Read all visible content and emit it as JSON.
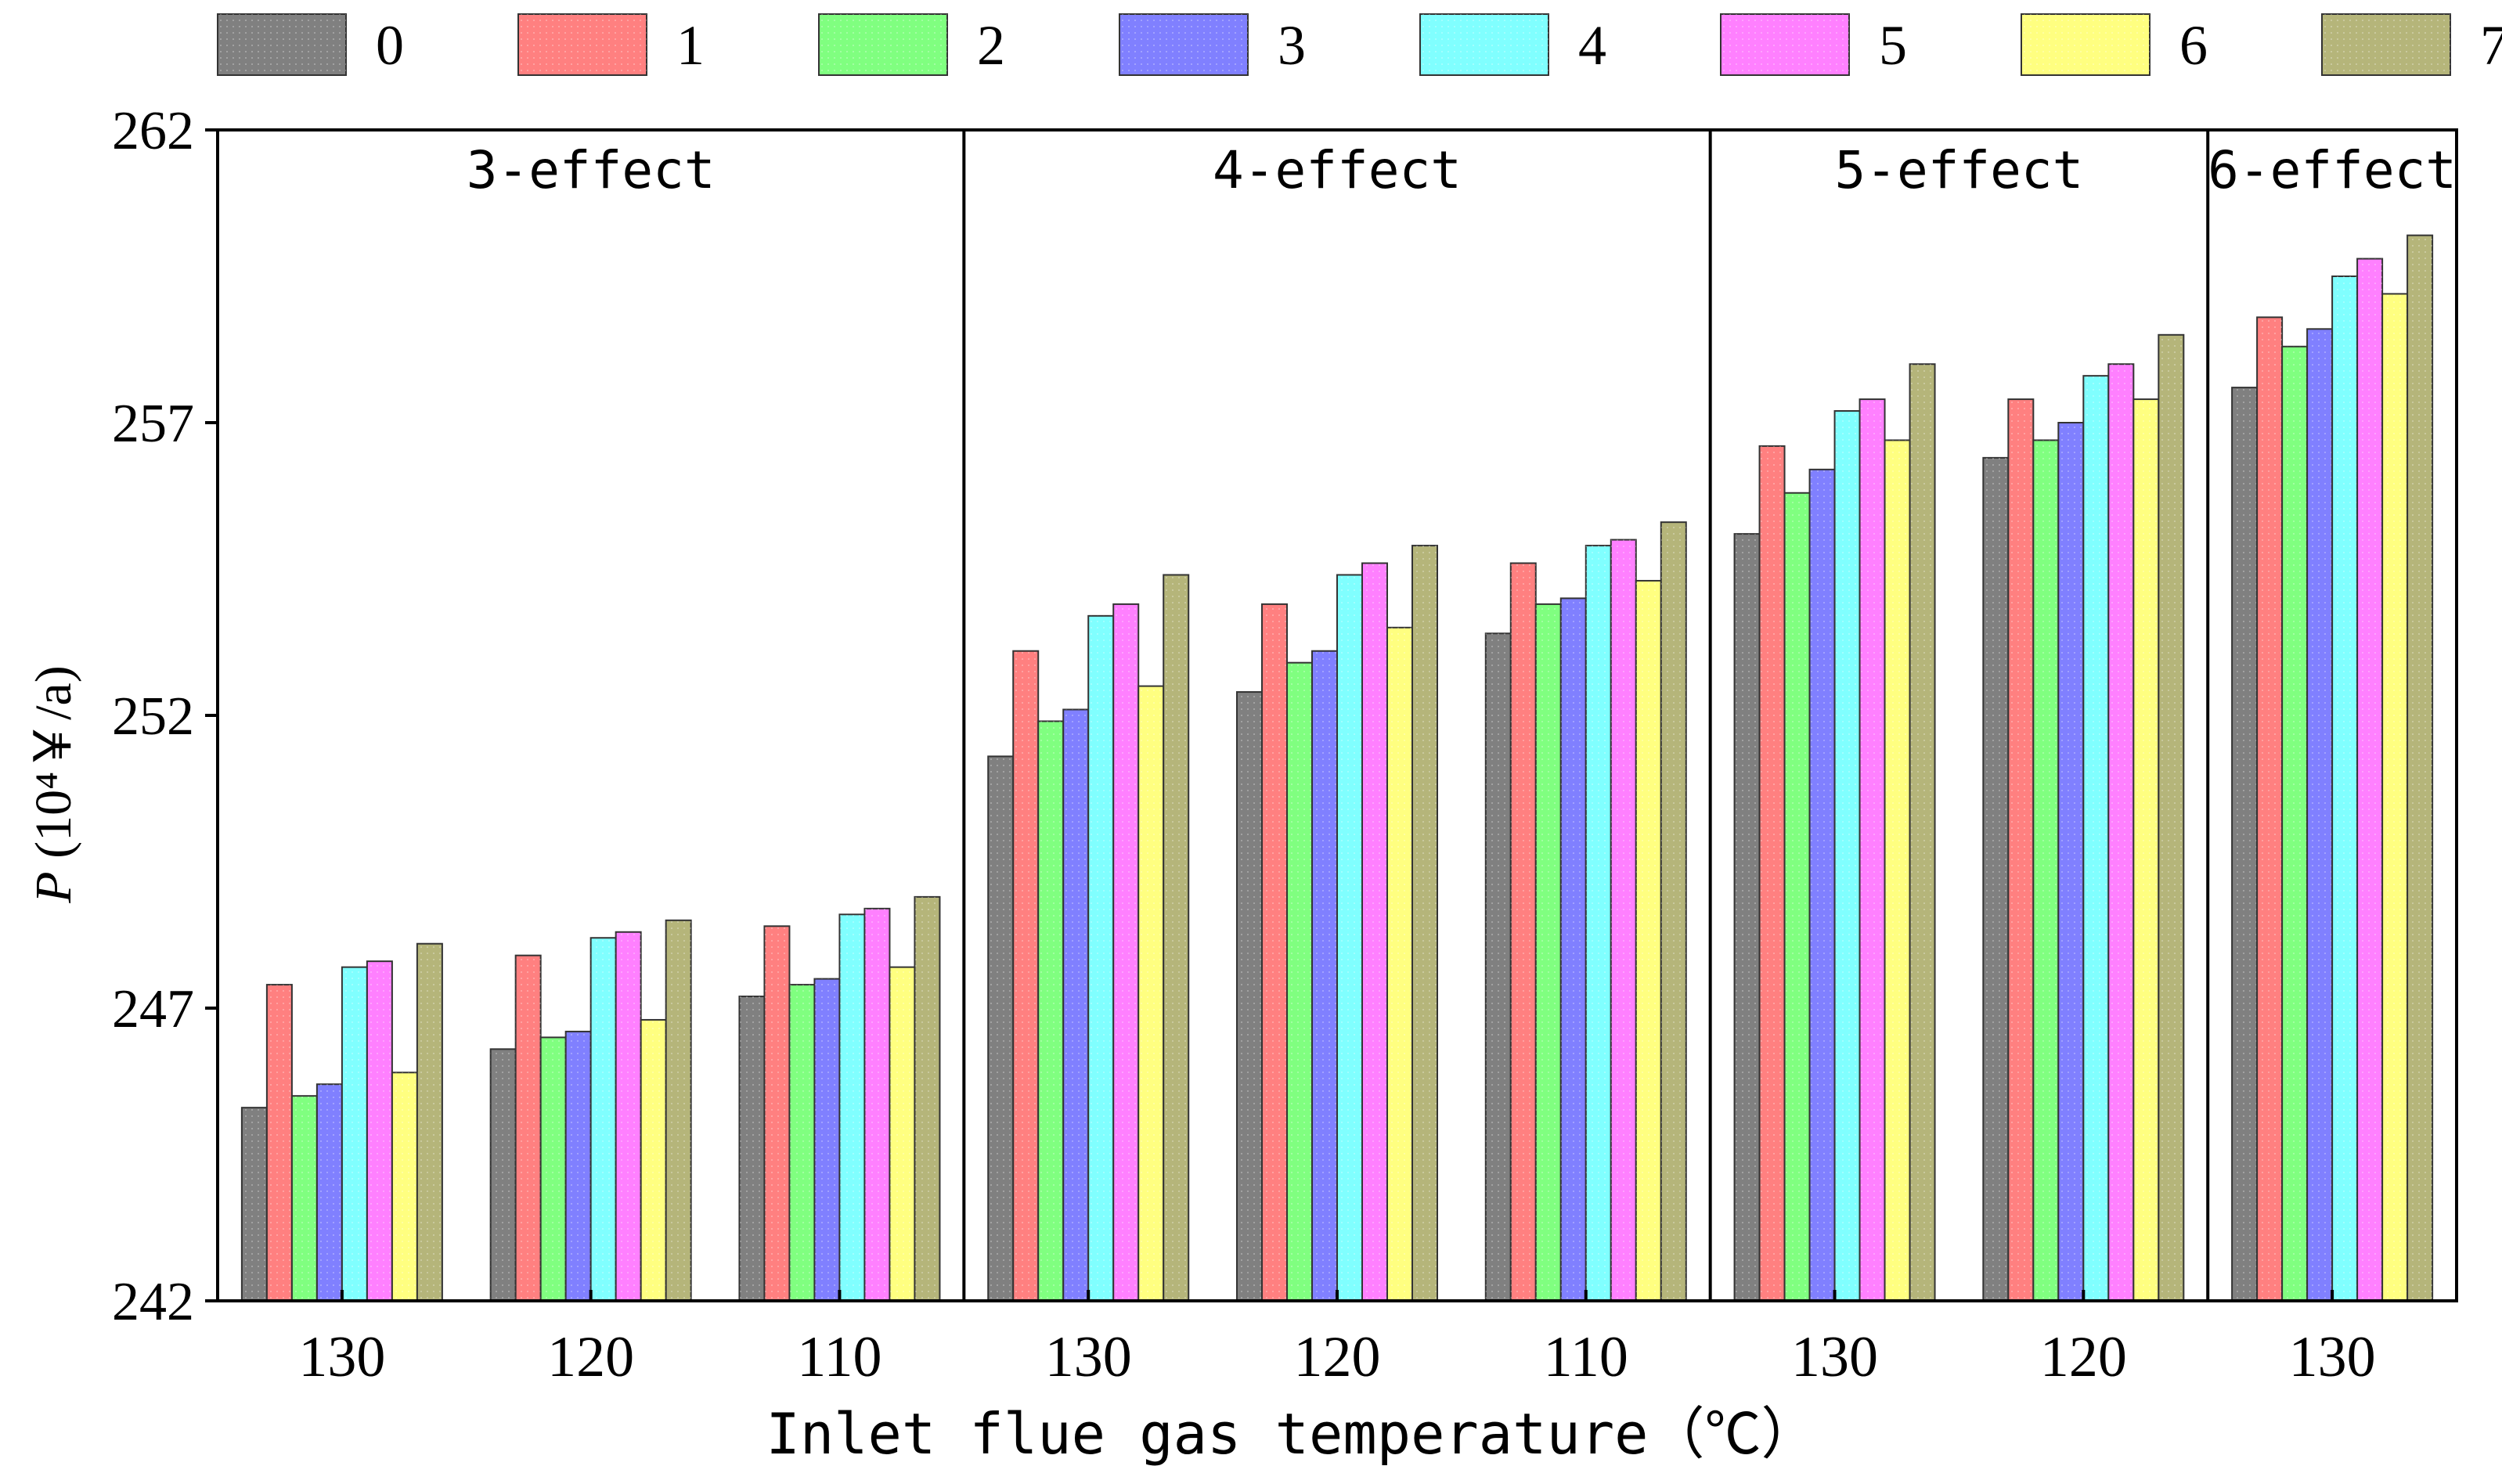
{
  "chart_data": {
    "type": "bar",
    "title": "",
    "xlabel": "Inlet flue gas temperature（℃）",
    "ylabel_italic": "P",
    "ylabel_rest": " (10⁴￥/a)",
    "ylim": [
      242,
      262
    ],
    "yticks": [
      "242",
      "247",
      "252",
      "257",
      "262"
    ],
    "legend_position": "top",
    "groups": [
      {
        "label": "3-effect",
        "categories": [
          "130",
          "120",
          "110"
        ]
      },
      {
        "label": "4-effect",
        "categories": [
          "130",
          "120",
          "110"
        ]
      },
      {
        "label": "5-effect",
        "categories": [
          "130",
          "120"
        ]
      },
      {
        "label": "6-effect",
        "categories": [
          "130"
        ]
      }
    ],
    "categories": [
      "130",
      "120",
      "110",
      "130",
      "120",
      "110",
      "130",
      "120",
      "130"
    ],
    "series": [
      {
        "name": "0",
        "color": "#808080",
        "values": [
          245.3,
          246.3,
          247.2,
          251.3,
          252.4,
          253.4,
          255.1,
          256.4,
          257.6
        ]
      },
      {
        "name": "1",
        "color": "#ff8080",
        "values": [
          247.4,
          247.9,
          248.4,
          253.1,
          253.9,
          254.6,
          256.6,
          257.4,
          258.8
        ]
      },
      {
        "name": "2",
        "color": "#80ff80",
        "values": [
          245.5,
          246.5,
          247.4,
          251.9,
          252.9,
          253.9,
          255.8,
          256.7,
          258.3
        ]
      },
      {
        "name": "3",
        "color": "#8080ff",
        "values": [
          245.7,
          246.6,
          247.5,
          252.1,
          253.1,
          254.0,
          256.2,
          257.0,
          258.6
        ]
      },
      {
        "name": "4",
        "color": "#80ffff",
        "values": [
          247.7,
          248.2,
          248.6,
          253.7,
          254.4,
          254.9,
          257.2,
          257.8,
          259.5
        ]
      },
      {
        "name": "5",
        "color": "#ff80ff",
        "values": [
          247.8,
          248.3,
          248.7,
          253.9,
          254.6,
          255.0,
          257.4,
          258.0,
          259.8
        ]
      },
      {
        "name": "6",
        "color": "#ffff80",
        "values": [
          245.9,
          246.8,
          247.7,
          252.5,
          253.5,
          254.3,
          256.7,
          257.4,
          259.2
        ]
      },
      {
        "name": "7",
        "color": "#b5b57a",
        "values": [
          248.1,
          248.5,
          248.9,
          254.4,
          254.9,
          255.3,
          258.0,
          258.5,
          260.2
        ]
      }
    ]
  }
}
